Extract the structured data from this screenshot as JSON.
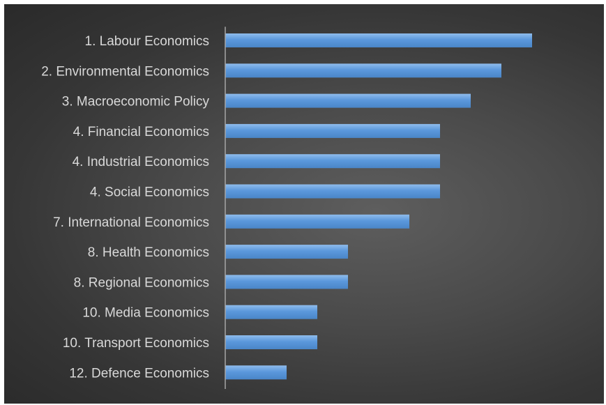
{
  "chart_data": {
    "type": "bar",
    "orientation": "horizontal",
    "categories": [
      "1. Labour Economics",
      "2. Environmental Economics",
      "3. Macroeconomic Policy",
      "4. Financial Economics",
      "4. Industrial Economics",
      "4. Social Economics",
      "7. International Economics",
      "8. Health Economics",
      "8. Regional Economics",
      "10. Media Economics",
      "10. Transport Economics",
      "12. Defence Economics"
    ],
    "values": [
      10,
      9,
      8,
      7,
      7,
      7,
      6,
      4,
      4,
      3,
      3,
      2
    ],
    "title": "",
    "xlabel": "",
    "ylabel": "",
    "xlim": [
      0,
      10
    ],
    "grid": false,
    "legend": "none",
    "colors": {
      "bar_top": "#8fbcec",
      "bar_bottom": "#4a86c8",
      "label": "#d9d9d9",
      "axis": "#a6a6a6",
      "background_center": "#5e5e5e",
      "background_edge": "#2a2a2a"
    }
  }
}
